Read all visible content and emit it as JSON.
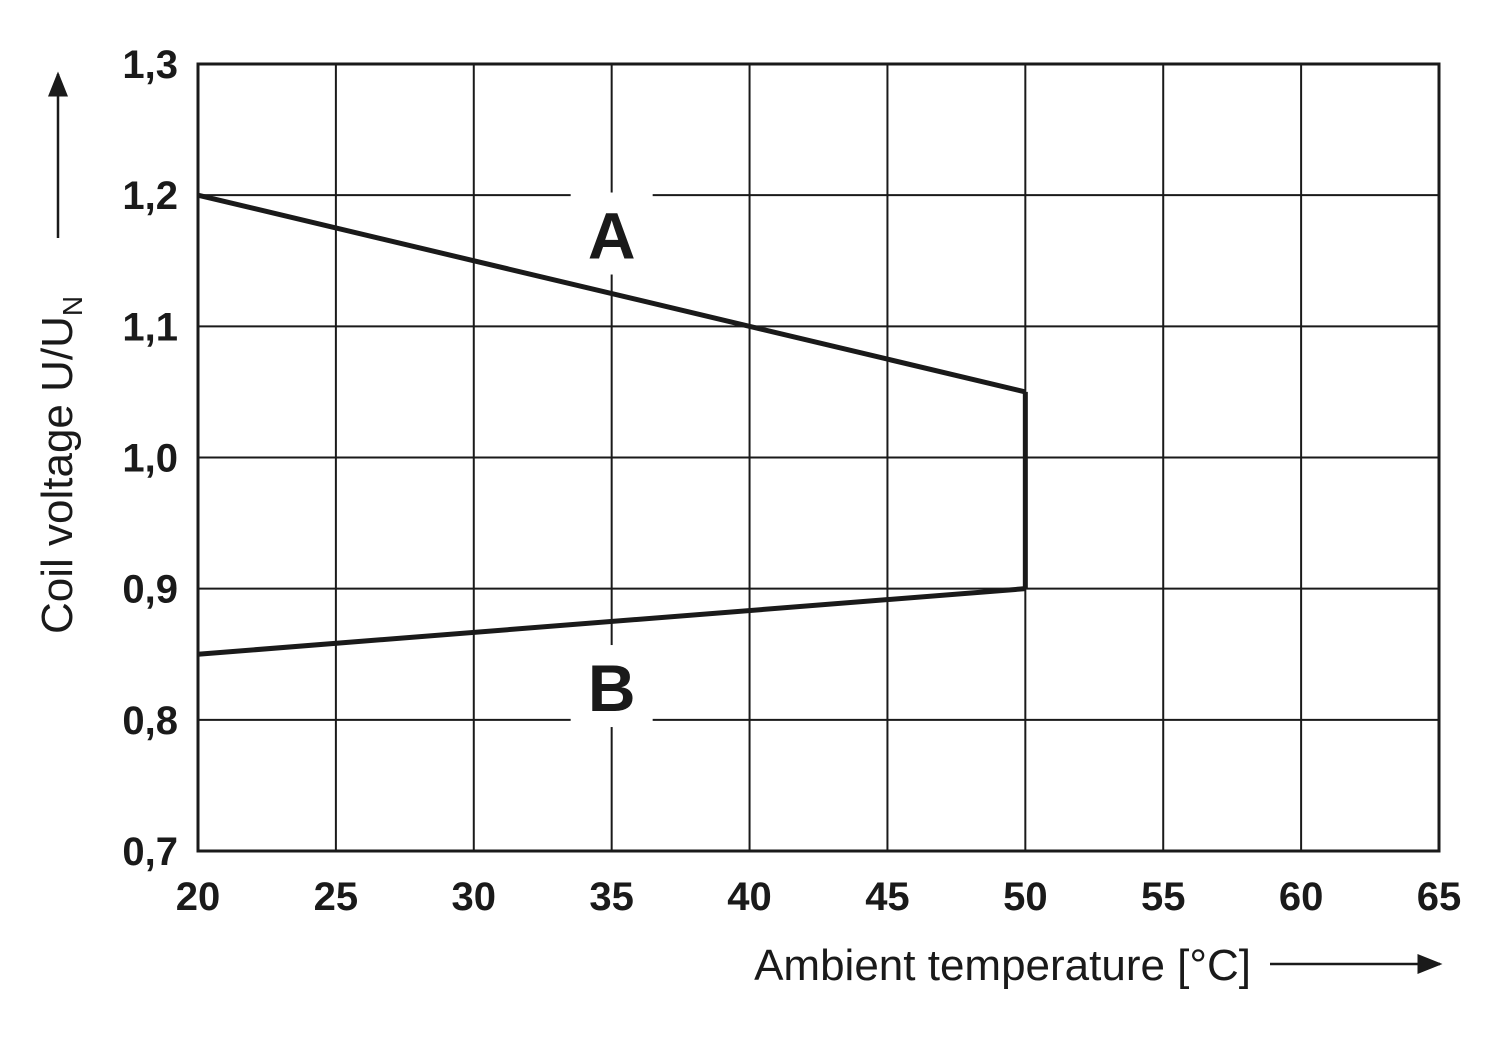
{
  "chart_data": {
    "type": "line",
    "xlabel": "Ambient temperature [°C]",
    "ylabel": "Coil voltage U/U",
    "ylabel_subscript": "N",
    "xlim": [
      20,
      65
    ],
    "ylim": [
      0.7,
      1.3
    ],
    "x_ticks": [
      20,
      25,
      30,
      35,
      40,
      45,
      50,
      55,
      60,
      65
    ],
    "x_tick_labels": [
      "20",
      "25",
      "30",
      "35",
      "40",
      "45",
      "50",
      "55",
      "60",
      "65"
    ],
    "y_ticks": [
      0.7,
      0.8,
      0.9,
      1.0,
      1.1,
      1.2,
      1.3
    ],
    "y_tick_labels": [
      "0,7",
      "0,8",
      "0,9",
      "1,0",
      "1,1",
      "1,2",
      "1,3"
    ],
    "grid": true,
    "series": [
      {
        "name": "A",
        "x": [
          20,
          50
        ],
        "y": [
          1.2,
          1.05
        ],
        "label_at": [
          35,
          1.17
        ]
      },
      {
        "name": "B",
        "x": [
          20,
          50
        ],
        "y": [
          0.85,
          0.9
        ],
        "label_at": [
          35,
          0.825
        ]
      }
    ],
    "closing_segment": {
      "x": [
        50,
        50
      ],
      "y": [
        1.05,
        0.9
      ]
    }
  }
}
